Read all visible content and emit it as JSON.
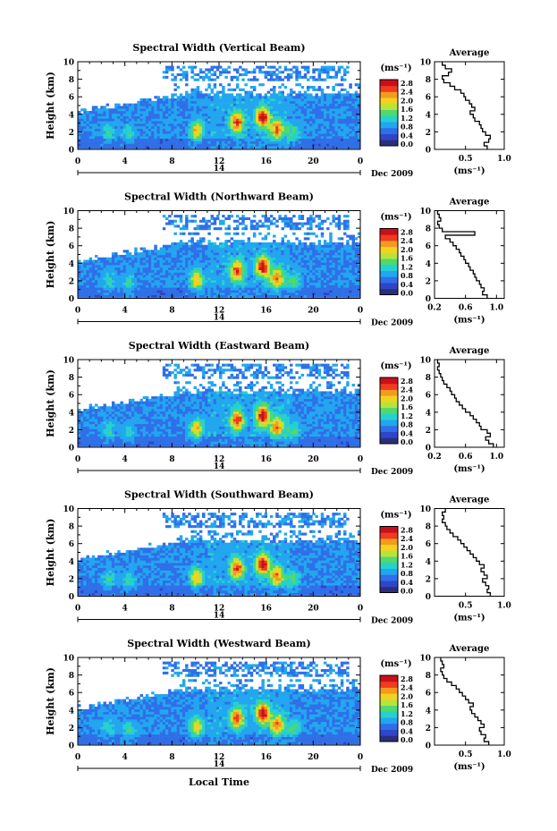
{
  "colorbar": {
    "unit": "(ms⁻¹)",
    "ticks": [
      "2.8",
      "2.4",
      "2.0",
      "1.6",
      "1.2",
      "0.8",
      "0.4",
      "0.0"
    ],
    "colors": [
      "#2b2f7a",
      "#2f46c8",
      "#2f6fe8",
      "#22a6ef",
      "#26d0d0",
      "#4fd96e",
      "#b9e33a",
      "#f3d21f",
      "#f49a1f",
      "#ef3b1f",
      "#c9101a"
    ]
  },
  "date_label": "Dec 2009",
  "day_label": "14",
  "xaxis_label": "Local Time",
  "chart_data": [
    {
      "type": "heatmap",
      "title": "Spectral Width (Vertical Beam)",
      "ylabel": "Height (km)",
      "x_ticks": [
        "0",
        "4",
        "8",
        "12",
        "16",
        "20",
        "0"
      ],
      "xlim": [
        0,
        24
      ],
      "y_ticks": [
        "0",
        "2",
        "4",
        "6",
        "8",
        "10"
      ],
      "ylim": [
        0,
        10
      ],
      "profile": {
        "title": "Average",
        "xlabel": "(ms⁻¹)",
        "x_ticks": [
          "0.5",
          "1.0"
        ],
        "x_tick_values": [
          0.5,
          1.0
        ],
        "xlim": [
          0.1,
          1.0
        ],
        "height": [
          0.2,
          0.6,
          1.0,
          1.4,
          1.8,
          2.2,
          2.6,
          3.0,
          3.4,
          3.8,
          4.2,
          4.6,
          5.0,
          5.4,
          5.8,
          6.2,
          6.6,
          7.0,
          7.4,
          7.8,
          8.2,
          8.6,
          9.0,
          9.4,
          9.8
        ],
        "width": [
          0.78,
          0.74,
          0.8,
          0.82,
          0.76,
          0.72,
          0.7,
          0.68,
          0.62,
          0.6,
          0.56,
          0.62,
          0.58,
          0.55,
          0.5,
          0.48,
          0.44,
          0.36,
          0.3,
          0.22,
          0.2,
          0.28,
          0.32,
          0.24,
          0.2
        ]
      }
    },
    {
      "type": "heatmap",
      "title": "Spectral Width (Northward Beam)",
      "ylabel": "Height (km)",
      "x_ticks": [
        "0",
        "4",
        "8",
        "12",
        "16",
        "20",
        "0"
      ],
      "xlim": [
        0,
        24
      ],
      "y_ticks": [
        "0",
        "2",
        "4",
        "6",
        "8",
        "10"
      ],
      "ylim": [
        0,
        10
      ],
      "profile": {
        "title": "Average",
        "xlabel": "(ms⁻¹)",
        "x_ticks": [
          "0.2",
          "0.6",
          "1.0"
        ],
        "x_tick_values": [
          0.2,
          0.6,
          1.0
        ],
        "xlim": [
          0.2,
          1.1
        ],
        "height": [
          0.2,
          0.6,
          1.0,
          1.4,
          1.8,
          2.2,
          2.6,
          3.0,
          3.4,
          3.8,
          4.2,
          4.6,
          5.0,
          5.4,
          5.8,
          6.2,
          6.6,
          7.0,
          7.4,
          7.8,
          8.2,
          8.6,
          9.0,
          9.4,
          9.8
        ],
        "width": [
          0.88,
          0.82,
          0.84,
          0.8,
          0.78,
          0.74,
          0.72,
          0.7,
          0.66,
          0.64,
          0.6,
          0.58,
          0.54,
          0.52,
          0.48,
          0.44,
          0.4,
          0.34,
          0.72,
          0.3,
          0.26,
          0.24,
          0.28,
          0.26,
          0.24
        ]
      }
    },
    {
      "type": "heatmap",
      "title": "Spectral Width (Eastward Beam)",
      "ylabel": "Height (km)",
      "x_ticks": [
        "0",
        "4",
        "8",
        "12",
        "16",
        "20",
        "0"
      ],
      "xlim": [
        0,
        24
      ],
      "y_ticks": [
        "0",
        "2",
        "4",
        "6",
        "8",
        "10"
      ],
      "ylim": [
        0,
        10
      ],
      "profile": {
        "title": "Average",
        "xlabel": "(ms⁻¹)",
        "x_ticks": [
          "0.2",
          "0.6",
          "1.0"
        ],
        "x_tick_values": [
          0.2,
          0.6,
          1.0
        ],
        "xlim": [
          0.2,
          1.1
        ],
        "height": [
          0.2,
          0.6,
          1.0,
          1.4,
          1.8,
          2.2,
          2.6,
          3.0,
          3.4,
          3.8,
          4.2,
          4.6,
          5.0,
          5.4,
          5.8,
          6.2,
          6.6,
          7.0,
          7.4,
          7.8,
          8.2,
          8.6,
          9.0,
          9.4,
          9.8
        ],
        "width": [
          0.96,
          0.9,
          0.86,
          0.92,
          0.88,
          0.8,
          0.78,
          0.74,
          0.7,
          0.66,
          0.6,
          0.56,
          0.52,
          0.48,
          0.46,
          0.42,
          0.4,
          0.36,
          0.32,
          0.3,
          0.28,
          0.26,
          0.24,
          0.26,
          0.24
        ]
      }
    },
    {
      "type": "heatmap",
      "title": "Spectral Width (Southward Beam)",
      "ylabel": "Height (km)",
      "x_ticks": [
        "0",
        "4",
        "8",
        "12",
        "16",
        "20",
        "0"
      ],
      "xlim": [
        0,
        24
      ],
      "y_ticks": [
        "0",
        "2",
        "4",
        "6",
        "8",
        "10"
      ],
      "ylim": [
        0,
        10
      ],
      "profile": {
        "title": "Average",
        "xlabel": "(ms⁻¹)",
        "x_ticks": [
          "0.5",
          "1.0"
        ],
        "x_tick_values": [
          0.5,
          1.0
        ],
        "xlim": [
          0.1,
          1.0
        ],
        "height": [
          0.2,
          0.6,
          1.0,
          1.4,
          1.8,
          2.2,
          2.6,
          3.0,
          3.4,
          3.8,
          4.2,
          4.6,
          5.0,
          5.4,
          5.8,
          6.2,
          6.6,
          7.0,
          7.4,
          7.8,
          8.2,
          8.6,
          9.0,
          9.4,
          9.8
        ],
        "width": [
          0.82,
          0.78,
          0.8,
          0.76,
          0.72,
          0.78,
          0.74,
          0.7,
          0.74,
          0.68,
          0.64,
          0.6,
          0.56,
          0.52,
          0.48,
          0.44,
          0.4,
          0.34,
          0.3,
          0.26,
          0.24,
          0.2,
          0.22,
          0.2,
          0.24
        ]
      }
    },
    {
      "type": "heatmap",
      "title": "Spectral Width (Westward Beam)",
      "ylabel": "Height (km)",
      "x_ticks": [
        "0",
        "4",
        "8",
        "12",
        "16",
        "20",
        "0"
      ],
      "xlim": [
        0,
        24
      ],
      "y_ticks": [
        "0",
        "2",
        "4",
        "6",
        "8",
        "10"
      ],
      "ylim": [
        0,
        10
      ],
      "profile": {
        "title": "Average",
        "xlabel": "(ms⁻¹)",
        "x_ticks": [
          "0.5",
          "1.0"
        ],
        "x_tick_values": [
          0.5,
          1.0
        ],
        "xlim": [
          0.1,
          1.0
        ],
        "height": [
          0.2,
          0.6,
          1.0,
          1.4,
          1.8,
          2.2,
          2.6,
          3.0,
          3.4,
          3.8,
          4.2,
          4.6,
          5.0,
          5.4,
          5.8,
          6.2,
          6.6,
          7.0,
          7.4,
          7.8,
          8.2,
          8.6,
          9.0,
          9.4,
          9.8
        ],
        "width": [
          0.8,
          0.74,
          0.76,
          0.7,
          0.68,
          0.74,
          0.7,
          0.66,
          0.62,
          0.58,
          0.56,
          0.6,
          0.54,
          0.5,
          0.46,
          0.42,
          0.38,
          0.32,
          0.26,
          0.22,
          0.2,
          0.18,
          0.22,
          0.2,
          0.18
        ]
      }
    }
  ]
}
